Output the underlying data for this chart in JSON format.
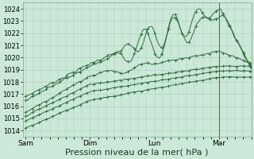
{
  "bg_color": "#cce8d8",
  "grid_color": "#aaccb8",
  "line_color": "#2d6e3a",
  "xlabel": "Pression niveau de la mer( hPa )",
  "xlabel_fontsize": 8,
  "ylim": [
    1013.5,
    1024.5
  ],
  "yticks": [
    1014,
    1015,
    1016,
    1017,
    1018,
    1019,
    1020,
    1021,
    1022,
    1023,
    1024
  ],
  "xtick_labels": [
    "Sam",
    "Dim",
    "Lun",
    "Mar"
  ],
  "xtick_positions": [
    0,
    48,
    96,
    144
  ],
  "xlim": [
    -2,
    168
  ],
  "vline_x": 144,
  "num_points": 200
}
